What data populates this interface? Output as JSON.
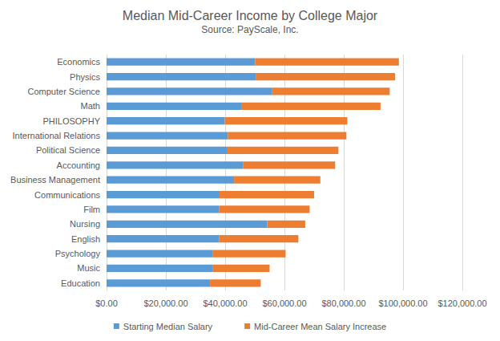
{
  "chart_data": {
    "type": "bar",
    "title": "Median Mid-Career Income by College Major",
    "subtitle": "Source: PayScale, Inc.",
    "orientation": "horizontal",
    "stacked": true,
    "grid": true,
    "legend": "bottom",
    "categories": [
      "Economics",
      "Physics",
      "Computer Science",
      "Math",
      "PHILOSOPHY",
      "International Relations",
      "Political Science",
      "Accounting",
      "Business Management",
      "Communications",
      "Film",
      "Nursing",
      "English",
      "Psychology",
      "Music",
      "Education"
    ],
    "series": [
      {
        "name": "Starting Median Salary",
        "color": "#5b9bd5",
        "values": [
          50100,
          50300,
          55900,
          45400,
          39900,
          40900,
          40800,
          46000,
          43000,
          38100,
          37900,
          54200,
          38000,
          35900,
          35900,
          34900
        ]
      },
      {
        "name": "Mid-Career Mean Salary Increase",
        "color": "#ed7d31",
        "values": [
          48500,
          47000,
          39600,
          47000,
          41300,
          40000,
          37400,
          31100,
          29100,
          31900,
          30600,
          12800,
          26700,
          24500,
          19100,
          17100
        ]
      }
    ],
    "xlim": [
      0,
      120000
    ],
    "xticks": [
      {
        "value": 0,
        "label": "$0.00"
      },
      {
        "value": 20000,
        "label": "$20,000.00"
      },
      {
        "value": 40000,
        "label": "$40,000.00"
      },
      {
        "value": 60000,
        "label": "$60,000.00"
      },
      {
        "value": 80000,
        "label": "$80,000.00"
      },
      {
        "value": 100000,
        "label": "$100,000.00"
      },
      {
        "value": 120000,
        "label": "$120,000.00"
      }
    ]
  }
}
